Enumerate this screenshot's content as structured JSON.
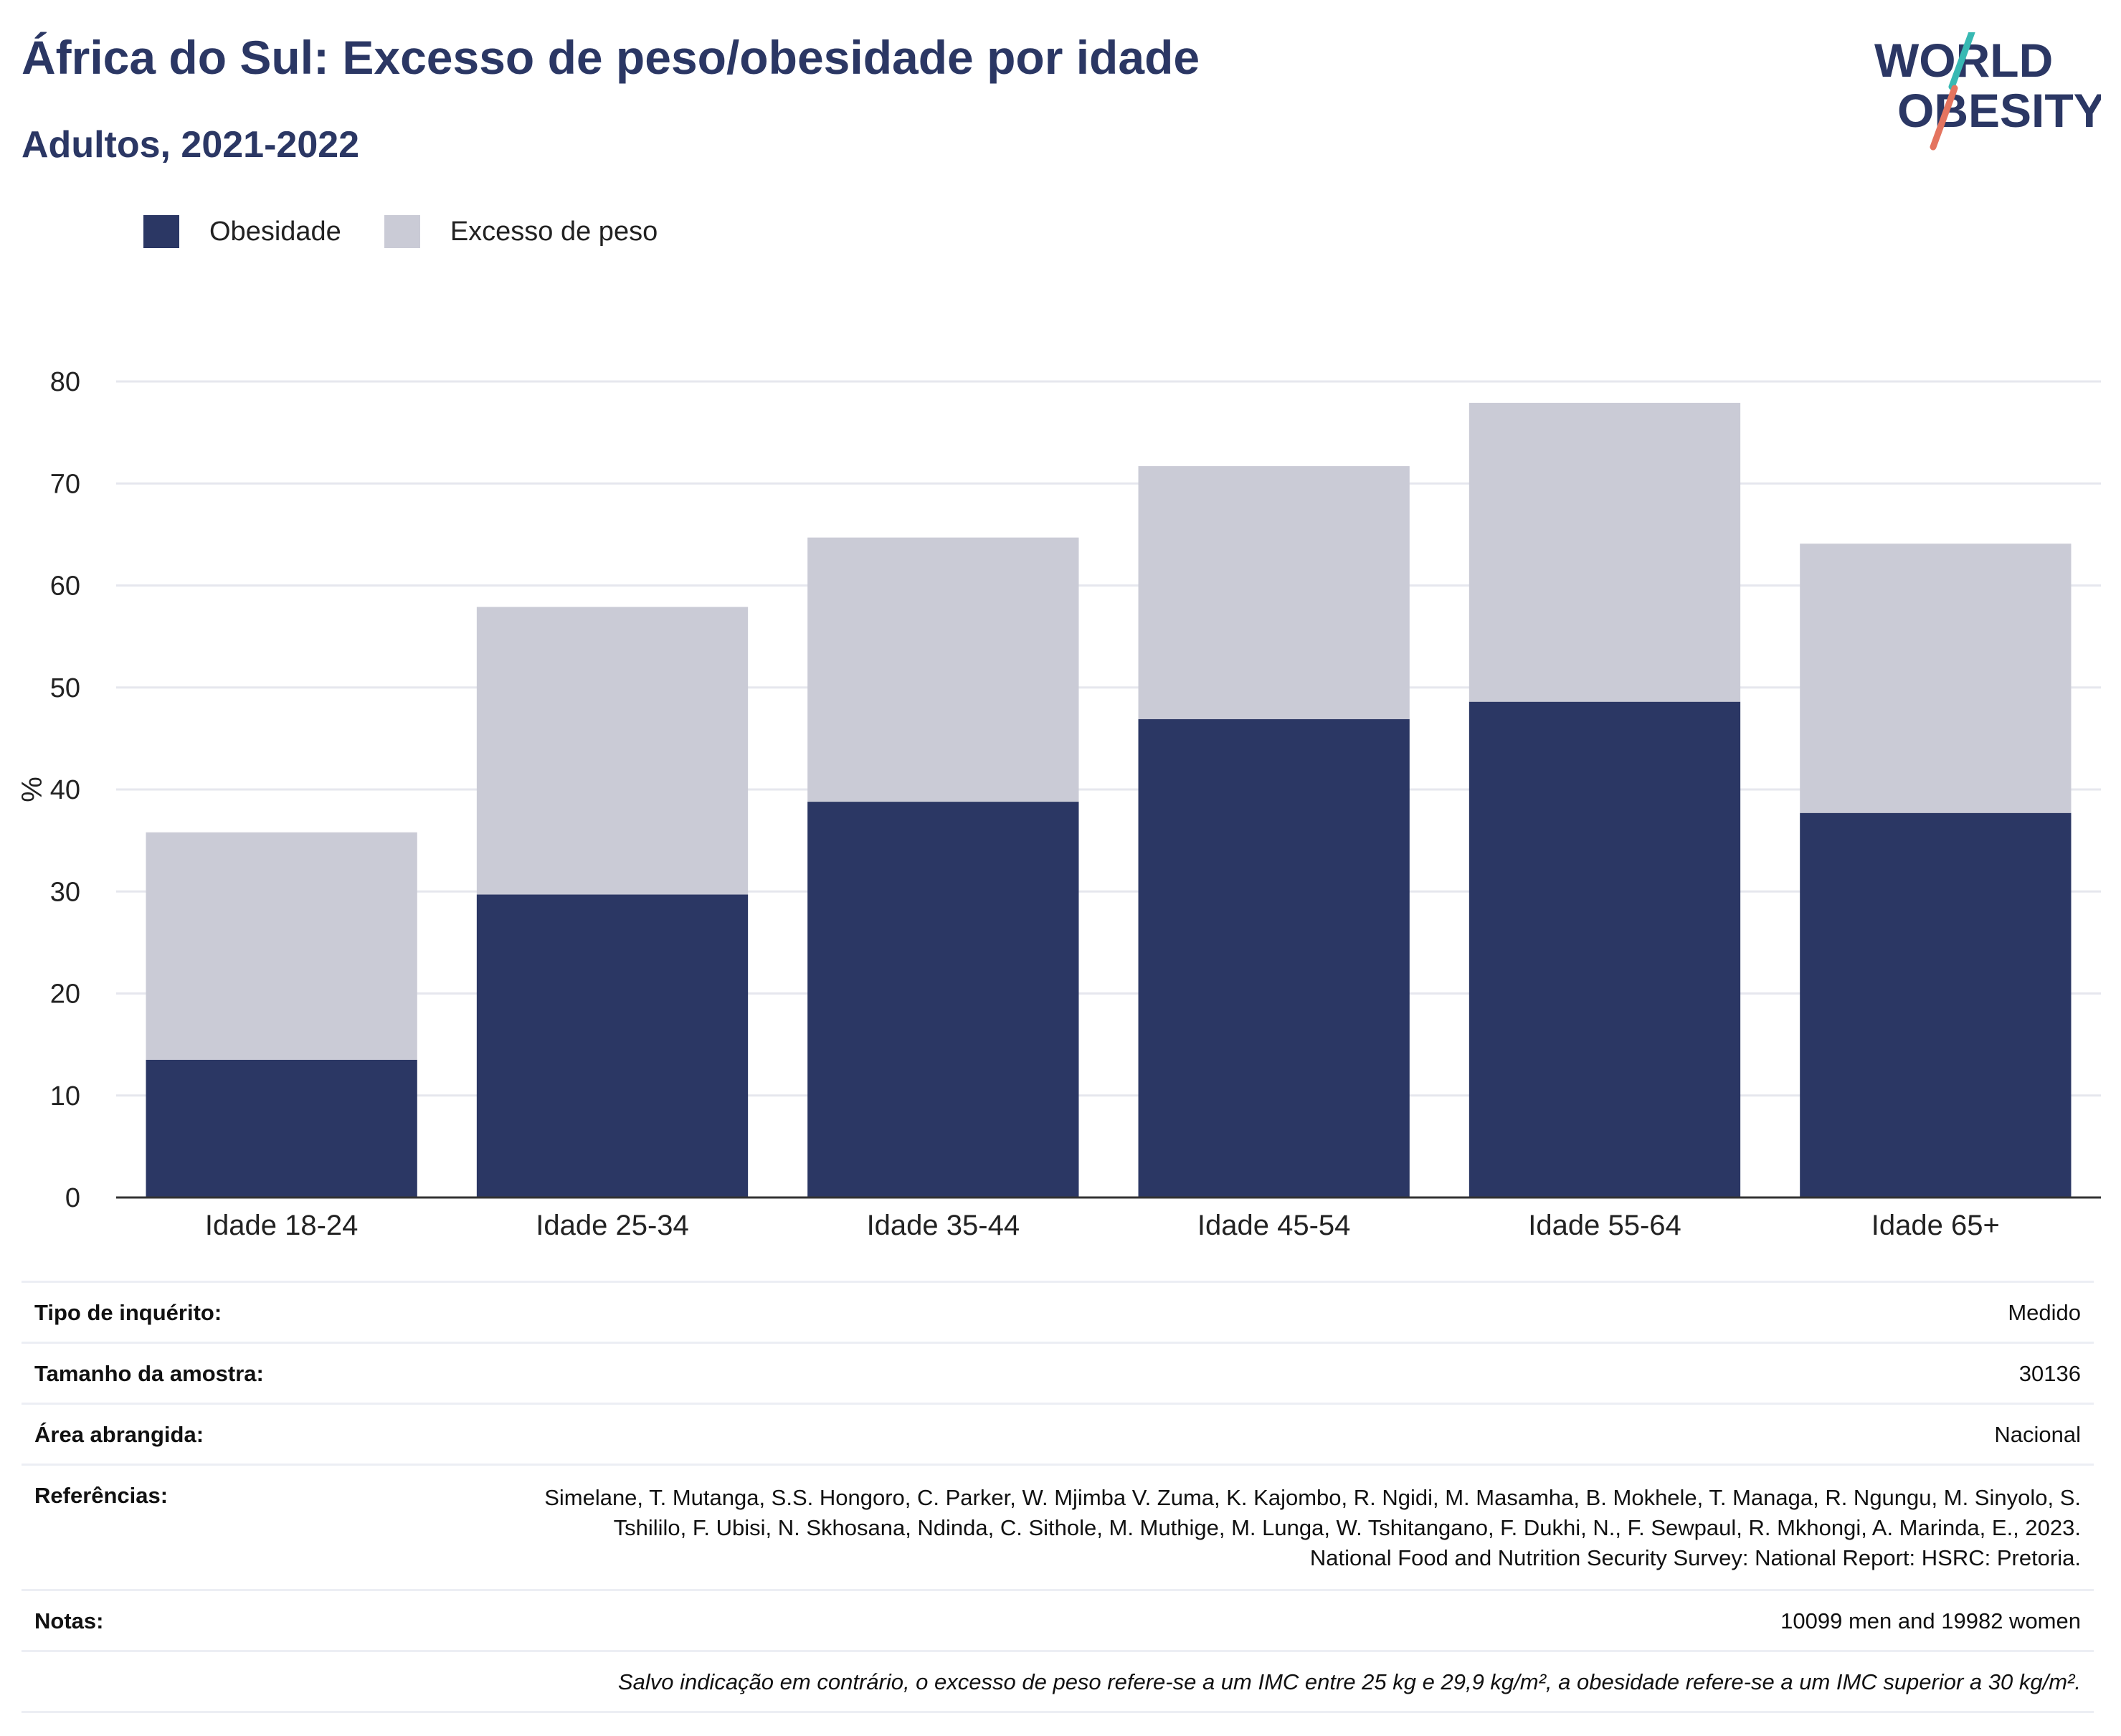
{
  "header": {
    "title": "África do Sul: Excesso de peso/obesidade por idade",
    "subtitle": "Adultos, 2021-2022"
  },
  "logo": {
    "line1": "WORLD",
    "line2": "OBESITY",
    "text_color": "#2b3764",
    "slash_colors": [
      "#38b9b3",
      "#e4745f"
    ]
  },
  "legend": [
    {
      "label": "Obesidade",
      "color": "#2b3764"
    },
    {
      "label": "Excesso de peso",
      "color": "#cacbd6"
    }
  ],
  "chart_data": {
    "type": "bar",
    "stacked": true,
    "categories": [
      "Idade 18-24",
      "Idade 25-34",
      "Idade 35-44",
      "Idade 45-54",
      "Idade 55-64",
      "Idade 65+"
    ],
    "series": [
      {
        "name": "Obesidade",
        "color": "#2b3764",
        "values": [
          13.5,
          29.7,
          38.8,
          46.9,
          48.6,
          37.7
        ]
      },
      {
        "name": "Excesso de peso",
        "color": "#cacbd6",
        "values": [
          22.3,
          28.2,
          25.9,
          24.8,
          29.3,
          26.4
        ]
      }
    ],
    "ylabel": "%",
    "ylim": [
      0,
      80
    ],
    "yticks": [
      0,
      10,
      20,
      30,
      40,
      50,
      60,
      70,
      80
    ],
    "grid": true,
    "legend_position": "top-left"
  },
  "meta": {
    "survey_type": {
      "label": "Tipo de inquérito:",
      "value": "Medido"
    },
    "sample_size": {
      "label": "Tamanho da amostra:",
      "value": "30136"
    },
    "area": {
      "label": "Área abrangida:",
      "value": "Nacional"
    },
    "references": {
      "label": "Referências:",
      "value": "Simelane, T. Mutanga, S.S. Hongoro, C. Parker, W. Mjimba V. Zuma, K. Kajombo, R. Ngidi, M. Masamha, B. Mokhele, T. Managa, R. Ngungu, M. Sinyolo, S. Tshililo, F. Ubisi, N. Skhosana, Ndinda, C. Sithole, M. Muthige, M. Lunga, W. Tshitangano, F. Dukhi, N., F. Sewpaul, R. Mkhongi, A. Marinda, E., 2023. National Food and Nutrition Security Survey: National Report: HSRC: Pretoria."
    },
    "notes": {
      "label": "Notas:",
      "value": "10099 men and 19982 women"
    },
    "footnote": "Salvo indicação em contrário, o excesso de peso refere-se a um IMC entre 25 kg e 29,9 kg/m², a obesidade refere-se a um IMC superior a 30 kg/m²."
  }
}
